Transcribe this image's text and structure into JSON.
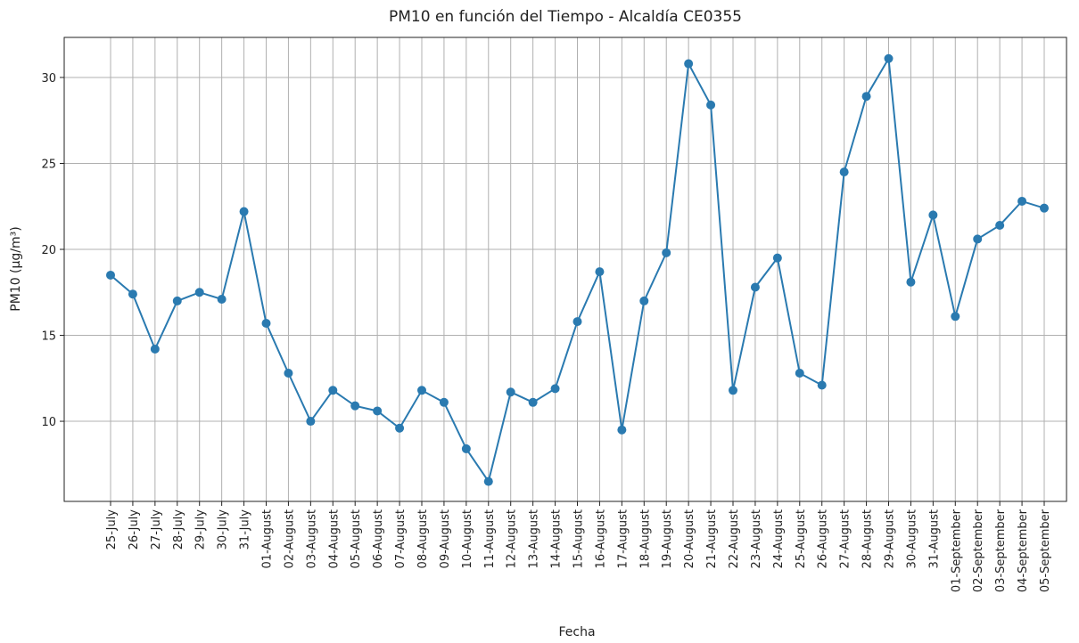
{
  "chart_data": {
    "type": "line",
    "title": "PM10 en función del Tiempo - Alcaldía CE0355",
    "x_label": "Fecha",
    "y_label": "PM10 (µg/m³)",
    "categories": [
      "25-July",
      "26-July",
      "27-July",
      "28-July",
      "29-July",
      "30-July",
      "31-July",
      "01-August",
      "02-August",
      "03-August",
      "04-August",
      "05-August",
      "06-August",
      "07-August",
      "08-August",
      "09-August",
      "10-August",
      "11-August",
      "12-August",
      "13-August",
      "14-August",
      "15-August",
      "16-August",
      "17-August",
      "18-August",
      "19-August",
      "20-August",
      "21-August",
      "22-August",
      "23-August",
      "24-August",
      "25-August",
      "26-August",
      "27-August",
      "28-August",
      "29-August",
      "30-August",
      "31-August",
      "01-September",
      "02-September",
      "03-September",
      "04-September",
      "05-September"
    ],
    "series": [
      {
        "name": "PM10",
        "color": "#2a7ab0",
        "values": [
          18.5,
          17.4,
          14.2,
          17.0,
          17.5,
          17.1,
          22.2,
          15.7,
          12.8,
          10.0,
          11.8,
          10.9,
          10.6,
          9.6,
          11.8,
          11.1,
          8.4,
          6.5,
          11.7,
          11.1,
          11.9,
          15.8,
          18.7,
          9.5,
          17.0,
          19.8,
          30.8,
          28.4,
          11.8,
          17.8,
          19.5,
          12.8,
          12.1,
          24.5,
          28.9,
          31.1,
          18.1,
          22.0,
          16.1,
          20.6,
          21.4,
          22.8,
          22.4
        ]
      }
    ],
    "ylim": [
      5.34,
      32.33
    ],
    "yticks": [
      10,
      15,
      20,
      25,
      30
    ],
    "grid": true
  }
}
